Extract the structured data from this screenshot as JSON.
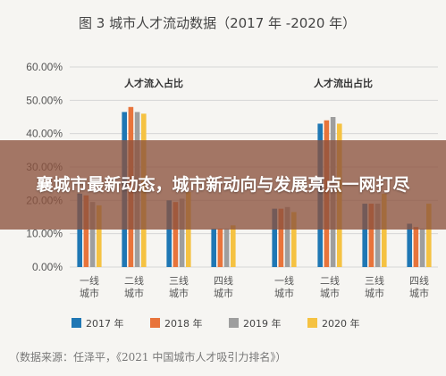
{
  "banner": {
    "headline": "襄城市最新动态，城市新动向与发展亮点一网打尽"
  },
  "chart_data": {
    "type": "bar",
    "title": "图 3  城市人才流动数据（2017 年 -2020 年）",
    "source": "（数据来源：任泽平，《2021 中国城市人才吸引力排名》）",
    "y_ticks": [
      "0.00%",
      "10.00%",
      "20.00%",
      "30.00%",
      "40.00%",
      "50.00%",
      "60.00%"
    ],
    "ylim": [
      0,
      60
    ],
    "grid": true,
    "legend_position": "bottom",
    "series_colors": [
      "#1f77b4",
      "#e8743b",
      "#9e9e9e",
      "#f5c242"
    ],
    "legend": [
      "2017 年",
      "2018 年",
      "2019 年",
      "2020 年"
    ],
    "panels": [
      {
        "title": "人才流入占比",
        "categories": [
          [
            "一线",
            "城市"
          ],
          [
            "二线",
            "城市"
          ],
          [
            "三线",
            "城市"
          ],
          [
            "四线",
            "城市"
          ]
        ],
        "series": [
          {
            "name": "2017 年",
            "values": [
              22.0,
              46.5,
              20.0,
              11.5
            ]
          },
          {
            "name": "2018 年",
            "values": [
              21.5,
              48.0,
              19.5,
              11.5
            ]
          },
          {
            "name": "2019 年",
            "values": [
              19.5,
              46.5,
              20.5,
              11.5
            ]
          },
          {
            "name": "2020 年",
            "values": [
              18.5,
              46.0,
              22.5,
              12.5
            ]
          }
        ]
      },
      {
        "title": "人才流出占比",
        "categories": [
          [
            "一线",
            "城市"
          ],
          [
            "二线",
            "城市"
          ],
          [
            "三线",
            "城市"
          ],
          [
            "四线",
            "城市"
          ]
        ],
        "series": [
          {
            "name": "2017 年",
            "values": [
              17.5,
              43.0,
              19.0,
              13.0
            ]
          },
          {
            "name": "2018 年",
            "values": [
              17.5,
              44.0,
              19.0,
              12.0
            ]
          },
          {
            "name": "2019 年",
            "values": [
              18.0,
              45.0,
              19.0,
              11.5
            ]
          },
          {
            "name": "2020 年",
            "values": [
              16.5,
              43.0,
              22.0,
              19.0
            ]
          }
        ]
      }
    ]
  }
}
